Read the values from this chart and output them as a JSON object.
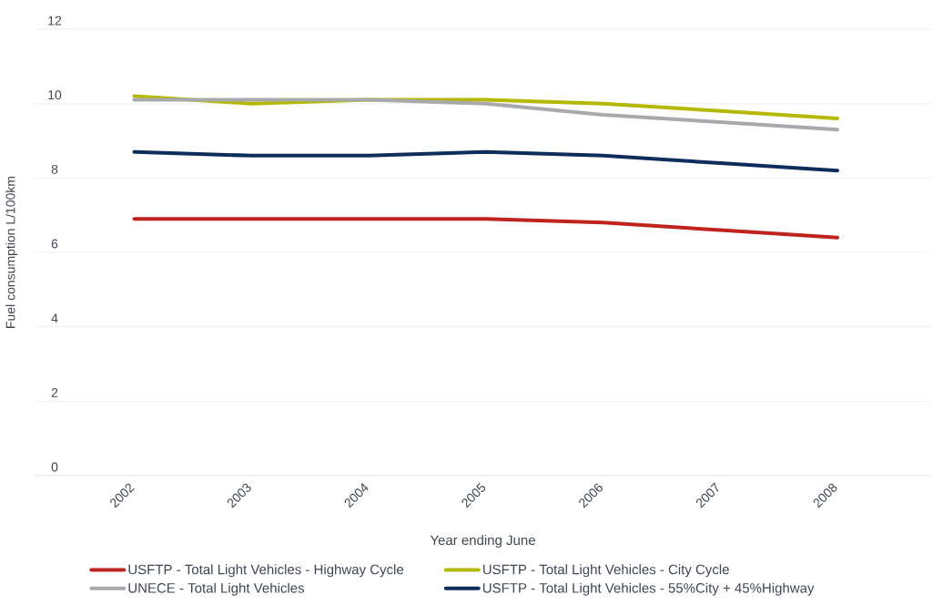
{
  "chart_data": {
    "type": "line",
    "xlabel": "Year ending June",
    "ylabel": "Fuel consumption L/100km",
    "categories": [
      "2002",
      "2003",
      "2004",
      "2005",
      "2006",
      "2007",
      "2008"
    ],
    "series": [
      {
        "name": "USFTP - Total Light Vehicles - Highway Cycle",
        "color": "#c0221e",
        "values": [
          6.9,
          6.9,
          6.9,
          6.9,
          6.8,
          6.6,
          6.4
        ]
      },
      {
        "name": "USFTP - Total Light Vehicles - City Cycle",
        "color": "#b5b800",
        "values": [
          10.2,
          10.0,
          10.1,
          10.1,
          10.0,
          9.8,
          9.6
        ]
      },
      {
        "name": "UNECE - Total Light Vehicles",
        "color": "#a7a9ac",
        "values": [
          10.1,
          10.1,
          10.1,
          10.0,
          9.7,
          9.5,
          9.3
        ]
      },
      {
        "name": "USFTP - Total Light Vehicles - 55%City + 45%Highway",
        "color": "#0d2d5a",
        "values": [
          8.7,
          8.6,
          8.6,
          8.7,
          8.6,
          8.4,
          8.2
        ]
      }
    ],
    "ylim": [
      0,
      12
    ],
    "yticks": [
      0,
      2,
      4,
      6,
      8,
      10,
      12
    ],
    "grid": "y",
    "legend": "bottom"
  }
}
